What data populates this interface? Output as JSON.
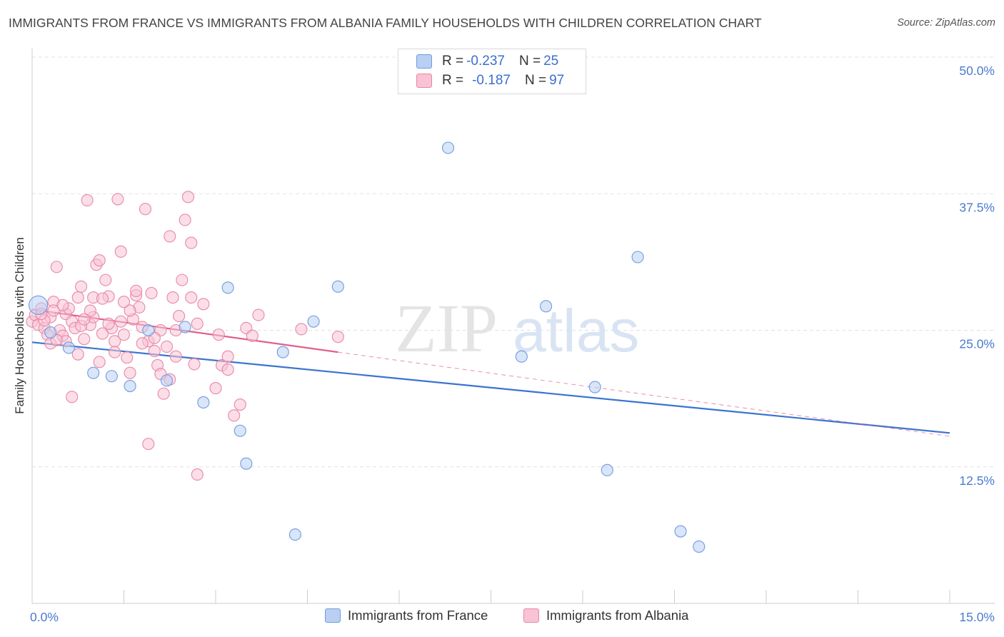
{
  "header": {
    "title": "IMMIGRANTS FROM FRANCE VS IMMIGRANTS FROM ALBANIA FAMILY HOUSEHOLDS WITH CHILDREN CORRELATION CHART",
    "source": "Source: ZipAtlas.com"
  },
  "watermark": {
    "zip": "ZIP",
    "atlas": "atlas"
  },
  "legend": {
    "france": {
      "r_label": "R = ",
      "r_value": "-0.237",
      "n_label": "N = ",
      "n_value": "25"
    },
    "albania": {
      "r_label": "R = ",
      "r_value": "-0.187",
      "n_label": "N = ",
      "n_value": "97"
    }
  },
  "chart_data": {
    "type": "scatter",
    "ylabel": "Family Households with Children",
    "xlim": [
      0,
      15
    ],
    "ylim": [
      0,
      50
    ],
    "x_tick_labels": [
      "0.0%",
      "15.0%"
    ],
    "y_ticks": [
      12.5,
      25.0,
      37.5,
      50.0
    ],
    "y_tick_labels": [
      "12.5%",
      "25.0%",
      "37.5%",
      "50.0%"
    ],
    "grid": true,
    "legend_position": "top-center",
    "colors": {
      "france": "#6f9be0",
      "france_fill": "#b9d0f2",
      "france_line": "#3a74d0",
      "albania": "#e887a8",
      "albania_fill": "#f8c3d4",
      "albania_line": "#e0608d",
      "axis_label_blue": "#4a7bd0"
    },
    "series": [
      {
        "name": "Immigrants from France",
        "trend": {
          "x0": 0.0,
          "y0": 23.9,
          "x1": 15.0,
          "y1": 15.6
        },
        "points": [
          [
            0.1,
            27.3
          ],
          [
            0.3,
            24.8
          ],
          [
            0.6,
            23.4
          ],
          [
            1.0,
            21.1
          ],
          [
            1.3,
            20.8
          ],
          [
            1.6,
            19.9
          ],
          [
            1.9,
            25.0
          ],
          [
            2.2,
            20.4
          ],
          [
            2.5,
            25.3
          ],
          [
            2.8,
            18.4
          ],
          [
            3.2,
            28.9
          ],
          [
            3.4,
            15.8
          ],
          [
            3.5,
            12.8
          ],
          [
            4.1,
            23.0
          ],
          [
            4.3,
            6.3
          ],
          [
            4.6,
            25.8
          ],
          [
            5.0,
            29.0
          ],
          [
            6.8,
            41.7
          ],
          [
            8.0,
            22.6
          ],
          [
            8.4,
            27.2
          ],
          [
            9.2,
            19.8
          ],
          [
            9.4,
            12.2
          ],
          [
            9.9,
            31.7
          ],
          [
            10.6,
            6.6
          ],
          [
            10.9,
            5.2
          ]
        ]
      },
      {
        "name": "Immigrants from Albania",
        "trend": {
          "x0": 0.0,
          "y0": 26.9,
          "x1": 5.0,
          "y1": 23.0
        },
        "trend_extended": {
          "x0": 5.0,
          "y0": 23.0,
          "x1": 15.0,
          "y1": 15.3
        },
        "points": [
          [
            0.0,
            25.8
          ],
          [
            0.05,
            26.4
          ],
          [
            0.1,
            25.5
          ],
          [
            0.15,
            27.0
          ],
          [
            0.2,
            25.2
          ],
          [
            0.25,
            24.6
          ],
          [
            0.3,
            23.8
          ],
          [
            0.3,
            26.2
          ],
          [
            0.35,
            27.6
          ],
          [
            0.4,
            30.8
          ],
          [
            0.45,
            25.0
          ],
          [
            0.5,
            24.5
          ],
          [
            0.55,
            26.5
          ],
          [
            0.6,
            27.0
          ],
          [
            0.65,
            25.8
          ],
          [
            0.7,
            25.2
          ],
          [
            0.75,
            28.0
          ],
          [
            0.8,
            29.0
          ],
          [
            0.85,
            24.2
          ],
          [
            0.9,
            36.9
          ],
          [
            0.95,
            25.5
          ],
          [
            1.0,
            26.2
          ],
          [
            1.0,
            28.0
          ],
          [
            1.05,
            31.0
          ],
          [
            1.1,
            22.1
          ],
          [
            1.15,
            24.7
          ],
          [
            1.2,
            29.6
          ],
          [
            1.25,
            28.1
          ],
          [
            1.3,
            25.2
          ],
          [
            1.35,
            24.0
          ],
          [
            1.4,
            37.0
          ],
          [
            1.45,
            32.2
          ],
          [
            1.5,
            27.6
          ],
          [
            1.55,
            22.5
          ],
          [
            1.6,
            21.1
          ],
          [
            1.65,
            26.0
          ],
          [
            1.7,
            28.2
          ],
          [
            1.75,
            27.1
          ],
          [
            1.8,
            25.3
          ],
          [
            1.85,
            36.1
          ],
          [
            1.9,
            24.0
          ],
          [
            1.95,
            28.4
          ],
          [
            2.0,
            23.1
          ],
          [
            2.05,
            21.8
          ],
          [
            2.1,
            25.0
          ],
          [
            2.15,
            19.2
          ],
          [
            2.2,
            23.5
          ],
          [
            2.25,
            33.6
          ],
          [
            2.3,
            28.0
          ],
          [
            2.35,
            22.6
          ],
          [
            2.4,
            26.3
          ],
          [
            2.45,
            29.6
          ],
          [
            2.5,
            35.1
          ],
          [
            2.55,
            37.2
          ],
          [
            2.6,
            33.0
          ],
          [
            2.65,
            21.9
          ],
          [
            2.7,
            25.6
          ],
          [
            2.8,
            27.4
          ],
          [
            3.0,
            19.7
          ],
          [
            3.1,
            21.8
          ],
          [
            3.2,
            22.6
          ],
          [
            3.3,
            17.2
          ],
          [
            3.4,
            18.2
          ],
          [
            3.5,
            25.2
          ],
          [
            3.6,
            24.5
          ],
          [
            3.7,
            26.4
          ],
          [
            0.2,
            25.9
          ],
          [
            0.55,
            24.0
          ],
          [
            1.25,
            25.6
          ],
          [
            1.9,
            14.6
          ],
          [
            0.65,
            18.9
          ],
          [
            2.7,
            11.8
          ],
          [
            1.1,
            31.4
          ],
          [
            1.6,
            26.8
          ],
          [
            0.4,
            24.1
          ],
          [
            0.8,
            25.4
          ],
          [
            1.35,
            23.0
          ],
          [
            2.0,
            24.3
          ],
          [
            2.25,
            20.5
          ],
          [
            1.7,
            28.6
          ],
          [
            0.95,
            26.8
          ],
          [
            3.2,
            21.4
          ],
          [
            4.4,
            25.1
          ],
          [
            5.0,
            24.4
          ],
          [
            0.15,
            26.5
          ],
          [
            0.5,
            27.3
          ],
          [
            1.45,
            25.8
          ],
          [
            2.1,
            21.0
          ],
          [
            1.15,
            27.9
          ],
          [
            0.75,
            22.8
          ],
          [
            1.5,
            24.6
          ],
          [
            2.35,
            25.0
          ],
          [
            0.35,
            26.8
          ],
          [
            1.8,
            23.8
          ],
          [
            2.6,
            28.0
          ],
          [
            0.85,
            26.0
          ],
          [
            3.05,
            24.6
          ]
        ]
      }
    ]
  }
}
